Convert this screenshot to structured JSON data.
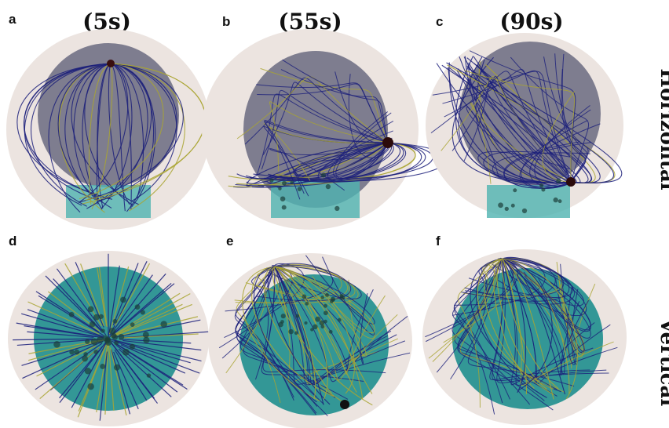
{
  "panels": {
    "a": {
      "letter": "a"
    },
    "b": {
      "letter": "b"
    },
    "c": {
      "letter": "c"
    },
    "d": {
      "letter": "d"
    },
    "e": {
      "letter": "e"
    },
    "f": {
      "letter": "f"
    }
  },
  "column_titles": [
    "(5s)",
    "(55s)",
    "(90s)"
  ],
  "row_labels": [
    "Horizontal",
    "Vertical"
  ],
  "colors": {
    "cell_background": "#ece4e0",
    "sphere_gray": "#6b6b80",
    "sphere_teal": "#1f8e8e",
    "stage_teal": "#4fb3b0",
    "fiber_blue": "#1b1f7a",
    "fiber_yellow": "#a9a431",
    "pole_dark": "#3a0f0f"
  }
}
